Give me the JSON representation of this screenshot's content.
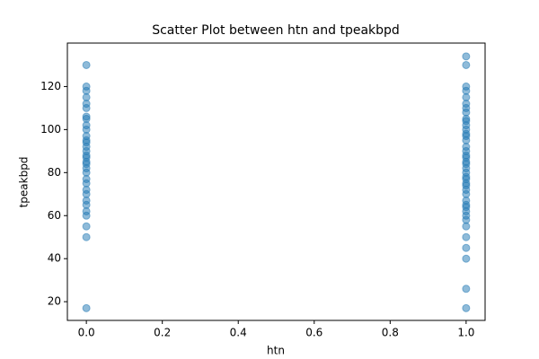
{
  "chart_data": {
    "type": "scatter",
    "title": "Scatter Plot between htn and tpeakbpd",
    "x_label": "htn",
    "y_label": "tpeakbpd",
    "color": "#1f77b4",
    "alpha": 0.5,
    "x": [
      0,
      0,
      0,
      0,
      0,
      0,
      0,
      0,
      0,
      0,
      0,
      0,
      0,
      0,
      0,
      0,
      0,
      0,
      0,
      0,
      0,
      0,
      0,
      0,
      0,
      0,
      0,
      0,
      0,
      0,
      0,
      0,
      1,
      1,
      1,
      1,
      1,
      1,
      1,
      1,
      1,
      1,
      1,
      1,
      1,
      1,
      1,
      1,
      1,
      1,
      1,
      1,
      1,
      1,
      1,
      1,
      1,
      1,
      1,
      1,
      1,
      1,
      1,
      1,
      1,
      1,
      1,
      1,
      1,
      1,
      1,
      1,
      1
    ],
    "values": [
      17,
      50,
      55,
      60,
      62,
      65,
      67,
      70,
      72,
      75,
      77,
      80,
      82,
      84,
      85,
      87,
      88,
      90,
      92,
      94,
      95,
      97,
      100,
      102,
      105,
      106,
      110,
      112,
      115,
      118,
      120,
      130,
      17,
      26,
      40,
      45,
      50,
      55,
      58,
      60,
      62,
      64,
      65,
      67,
      70,
      72,
      74,
      75,
      77,
      78,
      80,
      82,
      84,
      85,
      87,
      88,
      90,
      92,
      95,
      97,
      98,
      100,
      102,
      104,
      105,
      108,
      110,
      112,
      115,
      118,
      120,
      130,
      134
    ],
    "xlim": [
      -0.05,
      1.05
    ],
    "ylim": [
      11.3,
      140.2
    ],
    "xticks": [
      {
        "value": 0,
        "label": "0.0"
      },
      {
        "value": 0.2,
        "label": "0.2"
      },
      {
        "value": 0.4,
        "label": "0.4"
      },
      {
        "value": 0.6,
        "label": "0.6"
      },
      {
        "value": 0.8,
        "label": "0.8"
      },
      {
        "value": 1,
        "label": "1.0"
      }
    ],
    "yticks": [
      20,
      40,
      60,
      80,
      100,
      120
    ],
    "grid": false
  }
}
